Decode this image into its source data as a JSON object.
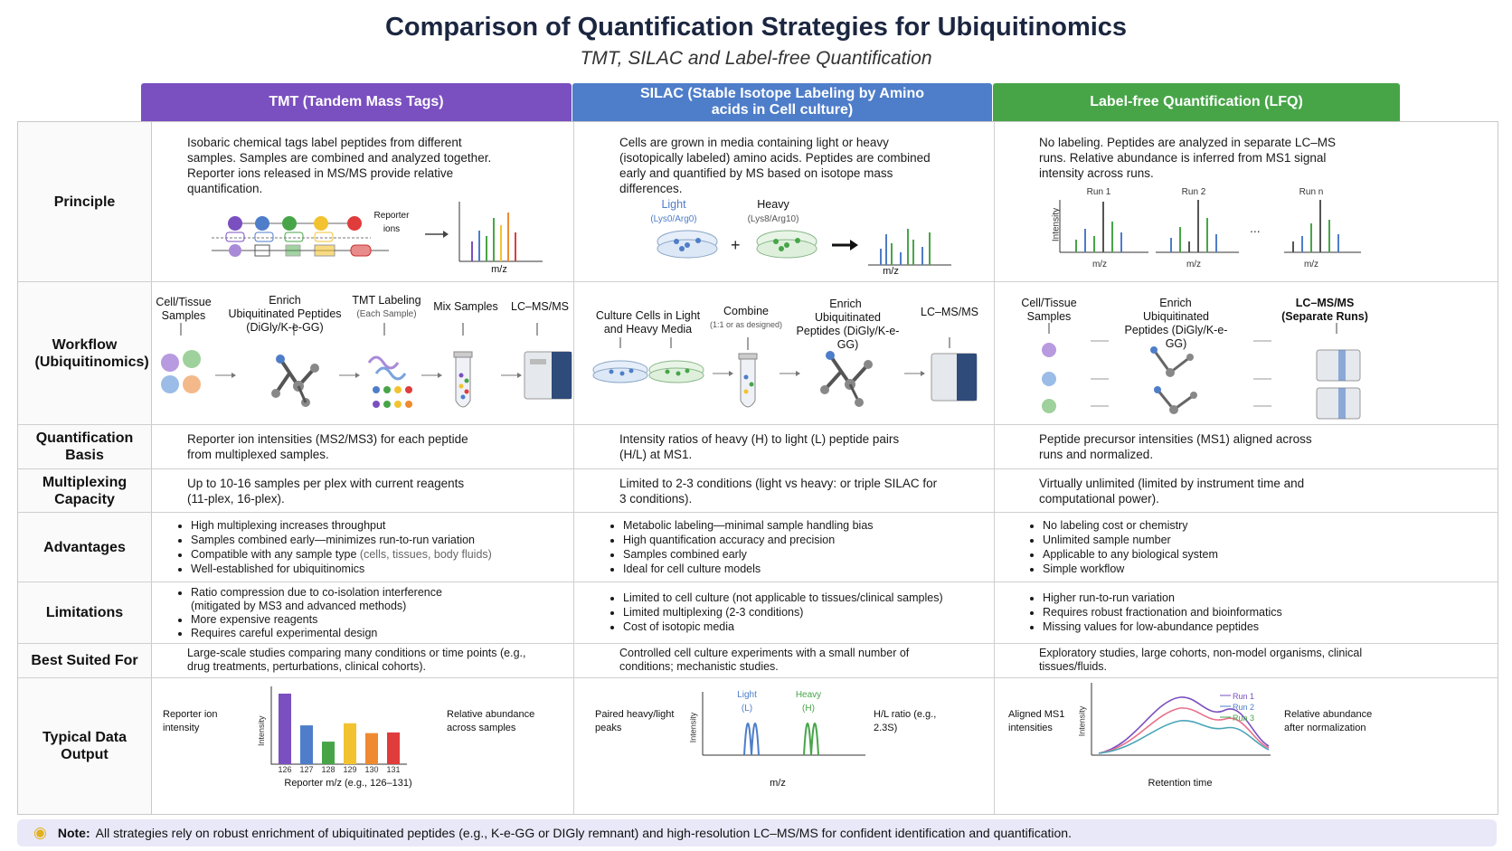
{
  "title": "Comparison of Quantification Strategies for Ubiquitinomics",
  "subtitle": "TMT, SILAC and Label-free Quantification",
  "columns": [
    {
      "label": "TMT (Tandem Mass Tags)",
      "color": "#7a4fc0"
    },
    {
      "label": "SILAC (Stable Isotope Labeling by Amino acids in Cell culture)",
      "color": "#4e7dc9"
    },
    {
      "label": "Label-free Quantification (LFQ)",
      "color": "#47a548"
    }
  ],
  "rows": {
    "principle": "Principle",
    "workflow": "Workflow (Ubiquitinomics)",
    "quant_basis": "Quantification Basis",
    "multiplexing": "Multiplexing Capacity",
    "advantages": "Advantages",
    "limitations": "Limitations",
    "best_suited": "Best Suited For",
    "data_output": "Typical Data Output"
  },
  "tmt": {
    "principle": "Isobaric chemical tags label peptides from different samples. Samples are combined and analyzed together. Reporter ions released in MS/MS provide relative quantification.",
    "reporter_ions": "Reporter ions",
    "mz": "m/z",
    "workflow": {
      "step1": "Cell/Tissue Samples",
      "step2_title": "Enrich",
      "step2": "Ubiquitinated Peptides (DiGly/K-e-GG)",
      "step3": "TMT Labeling",
      "step3_sub": "(Each Sample)",
      "step4": "Mix Samples",
      "step5": "LC–MS/MS"
    },
    "quant_basis": "Reporter ion intensities (MS2/MS3) for each peptide from multiplexed samples.",
    "multiplexing": "Up to 10-16 samples per plex with current reagents (11-plex, 16-plex).",
    "advantages": [
      "High multiplexing increases throughput",
      "Samples combined early—minimizes run-to-run variation",
      "Compatible with any sample type",
      "Well-established for ubiquitinomics"
    ],
    "advantages_note": "(cells, tissues, body fluids)",
    "limitations": [
      "Ratio compression due to co-isolation interference (mitigated by MS3 and advanced methods)",
      "More expensive reagents",
      "Requires careful experimental design"
    ],
    "best_suited": "Large-scale studies comparing many conditions or time points (e.g., drug treatments, perturbations, clinical cohorts).",
    "output_left": "Reporter ion intensity",
    "output_right": "Relative abundance across samples",
    "output_xlabel": "Reporter m/z (e.g., 126–131)",
    "output_ylabel": "Intensity"
  },
  "silac": {
    "principle": "Cells are grown in media containing light or heavy (isotopically labeled) amino acids. Peptides are combined early and quantified by MS based on isotope mass differences.",
    "light": "Light",
    "light_sub": "(Lys0/Arg0)",
    "heavy": "Heavy",
    "heavy_sub": "(Lys8/Arg10)",
    "mz": "m/z",
    "workflow": {
      "step1": "Culture Cells in Light and Heavy Media",
      "step2": "Combine",
      "step2_sub": "(1:1 or as designed)",
      "step3_title": "Enrich",
      "step3": "Ubiquitinated Peptides (DiGly/K-e-GG)",
      "step4": "LC–MS/MS"
    },
    "quant_basis": "Intensity ratios of heavy (H) to light (L) peptide pairs (H/L) at MS1.",
    "multiplexing": "Limited to 2-3 conditions (light vs heavy: or triple SILAC for 3 conditions).",
    "advantages": [
      "Metabolic labeling—minimal sample handling bias",
      "High quantification accuracy and precision",
      "Samples combined early",
      "Ideal for cell culture models"
    ],
    "limitations": [
      "Limited to cell culture (not applicable to tissues/clinical samples)",
      "Limited multiplexing (2-3 conditions)",
      "Cost of isotopic media"
    ],
    "best_suited": "Controlled cell culture experiments with a small number of conditions; mechanistic studies.",
    "output_left": "Paired heavy/light peaks",
    "output_light": "Light (L)",
    "output_heavy": "Heavy (H)",
    "output_right": "H/L ratio (e.g., 2.3S)",
    "output_xlabel": "m/z",
    "output_ylabel": "Intensity"
  },
  "lfq": {
    "principle": "No labeling. Peptides are analyzed in separate LC–MS runs. Relative abundance is inferred from MS1 signal intensity across runs.",
    "runs": [
      "Run 1",
      "Run 2",
      "Run n"
    ],
    "mz": "m/z",
    "intensity": "Intensity",
    "workflow": {
      "step1": "Cell/Tissue Samples",
      "step2_title": "Enrich",
      "step2": "Ubiquitinated Peptides (DiGly/K-e-GG)",
      "step3": "LC–MS/MS (Separate Runs)"
    },
    "quant_basis": "Peptide precursor intensities (MS1) aligned across runs and normalized.",
    "multiplexing": "Virtually unlimited (limited by instrument time and computational power).",
    "advantages": [
      "No labeling cost or chemistry",
      "Unlimited sample number",
      "Applicable to any biological system",
      "Simple workflow"
    ],
    "limitations": [
      "Higher run-to-run variation",
      "Requires robust fractionation and bioinformatics",
      "Missing values for low-abundance peptides"
    ],
    "best_suited": "Exploratory studies, large cohorts, non-model organisms, clinical tissues/fluids.",
    "output_left": "Aligned MS1 intensities",
    "output_right": "Relative abundance after normalization",
    "output_xlabel": "Retention time",
    "output_ylabel": "Intensity",
    "legend": [
      "Run 1",
      "Run 2",
      "Run 3"
    ]
  },
  "note_label": "Note:",
  "note": "All strategies rely on robust enrichment of ubiquitinated peptides (e.g., K-e-GG or DIGly remnant) and high-resolution LC–MS/MS for confident identification and quantification.",
  "chart_data": [
    {
      "type": "bar",
      "categories": [
        "126",
        "127",
        "128",
        "129",
        "130",
        "131"
      ],
      "values": [
        100,
        55,
        32,
        58,
        44,
        45
      ],
      "xlabel": "Reporter m/z (e.g., 126–131)",
      "ylabel": "Intensity",
      "colors": [
        "#7a4fc0",
        "#4e7dc9",
        "#47a548",
        "#f2c230",
        "#f08a30",
        "#e03c3c"
      ]
    },
    {
      "type": "line",
      "series": [
        {
          "name": "Light (L)"
        },
        {
          "name": "Heavy (H)"
        }
      ],
      "xlabel": "m/z",
      "ylabel": "Intensity"
    },
    {
      "type": "line",
      "series": [
        {
          "name": "Run 1"
        },
        {
          "name": "Run 2"
        },
        {
          "name": "Run 3"
        }
      ],
      "xlabel": "Retention time",
      "ylabel": "Intensity"
    }
  ]
}
